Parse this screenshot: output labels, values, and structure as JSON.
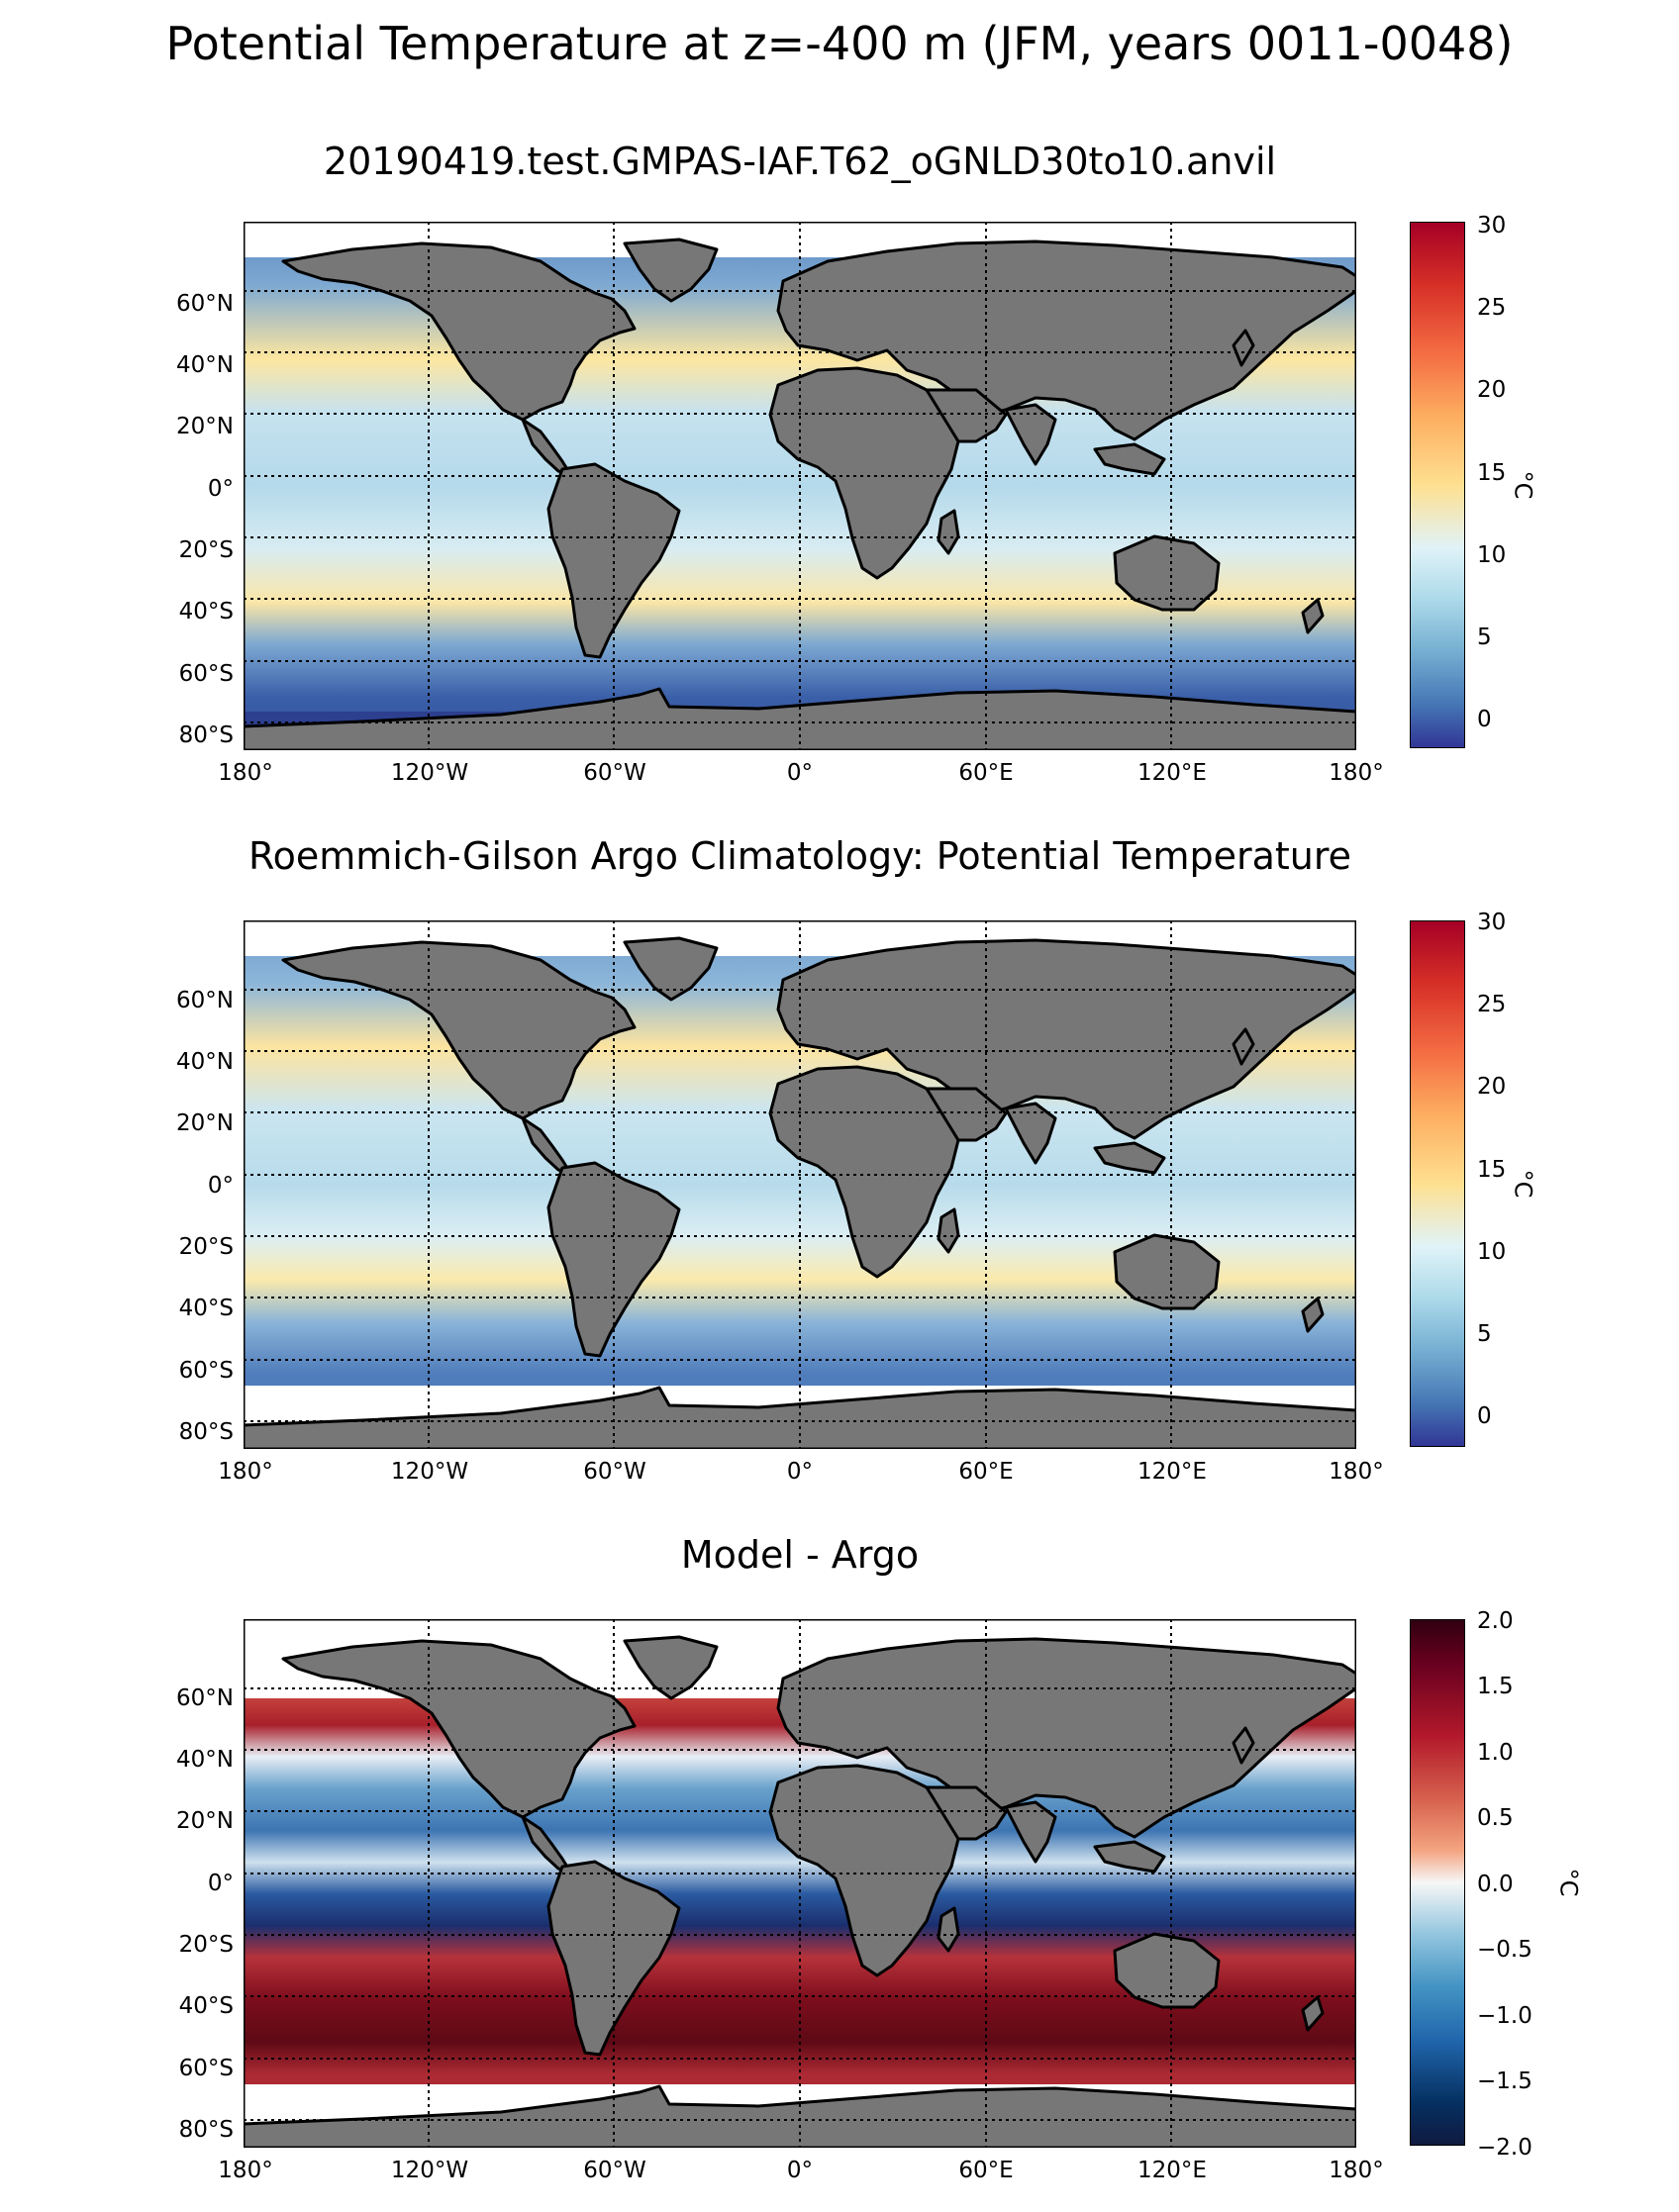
{
  "figure": {
    "suptitle": "Potential Temperature at z=-400 m (JFM, years 0011-0048)"
  },
  "axes": {
    "lon_ticks": [
      "180°",
      "120°W",
      "60°W",
      "0°",
      "60°E",
      "120°E",
      "180°"
    ],
    "lat_ticks": [
      "60°N",
      "40°N",
      "20°N",
      "0°",
      "20°S",
      "40°S",
      "60°S",
      "80°S"
    ]
  },
  "panels": [
    {
      "title": "20190419.test.GMPAS-IAF.T62_oGNLD30to10.anvil",
      "colormap": "RdYlBu_r",
      "colorbar": {
        "label": "°C",
        "ticks": [
          "30",
          "25",
          "20",
          "15",
          "10",
          "5",
          "0"
        ],
        "range": [
          -2,
          30
        ]
      }
    },
    {
      "title": "Roemmich-Gilson Argo Climatology: Potential Temperature",
      "colormap": "RdYlBu_r",
      "colorbar": {
        "label": "°C",
        "ticks": [
          "30",
          "25",
          "20",
          "15",
          "10",
          "5",
          "0"
        ],
        "range": [
          -2,
          30
        ]
      }
    },
    {
      "title": "Model - Argo",
      "colormap": "RdBu_r",
      "colorbar": {
        "label": "°C",
        "ticks": [
          "2.0",
          "1.5",
          "1.0",
          "0.5",
          "0.0",
          "−0.5",
          "−1.0",
          "−1.5",
          "−2.0"
        ],
        "range": [
          -2,
          2
        ]
      }
    }
  ],
  "colors": {
    "land": "#777777",
    "missing": "#ffffff",
    "coastline": "#000000"
  }
}
